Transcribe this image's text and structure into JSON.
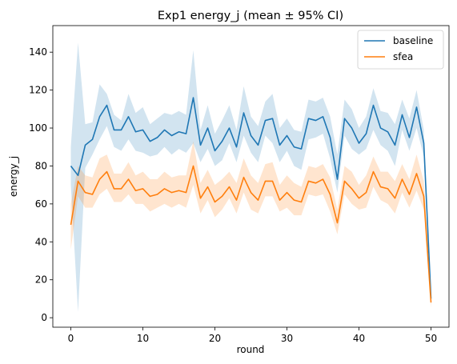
{
  "chart_data": {
    "type": "line",
    "title": "Exp1 energy_j (mean ± 95% CI)",
    "xlabel": "round",
    "ylabel": "energy_j",
    "xlim": [
      -2.5,
      52.5
    ],
    "ylim": [
      -5,
      154
    ],
    "xticks": [
      0,
      10,
      20,
      30,
      40,
      50
    ],
    "yticks": [
      0,
      20,
      40,
      60,
      80,
      100,
      120,
      140
    ],
    "grid": false,
    "legend_position": "top-right",
    "x": [
      0,
      1,
      2,
      3,
      4,
      5,
      6,
      7,
      8,
      9,
      10,
      11,
      12,
      13,
      14,
      15,
      16,
      17,
      18,
      19,
      20,
      21,
      22,
      23,
      24,
      25,
      26,
      27,
      28,
      29,
      30,
      31,
      32,
      33,
      34,
      35,
      36,
      37,
      38,
      39,
      40,
      41,
      42,
      43,
      44,
      45,
      46,
      47,
      48,
      49,
      50
    ],
    "series": [
      {
        "name": "baseline",
        "color": "#1f77b4",
        "values": [
          80,
          75,
          91,
          94,
          106,
          112,
          99,
          99,
          106,
          98,
          99,
          93,
          95,
          99,
          96,
          98,
          97,
          116,
          91,
          100,
          88,
          93,
          100,
          90,
          108,
          96,
          91,
          104,
          105,
          91,
          96,
          90,
          89,
          105,
          104,
          106,
          95,
          73,
          105,
          100,
          92,
          97,
          112,
          100,
          98,
          91,
          107,
          95,
          111,
          92,
          10
        ],
        "ci_lower": [
          70,
          3,
          79,
          86,
          94,
          101,
          90,
          88,
          94,
          88,
          87,
          85,
          86,
          90,
          86,
          89,
          87,
          92,
          82,
          89,
          80,
          83,
          92,
          82,
          96,
          87,
          82,
          96,
          92,
          82,
          88,
          80,
          78,
          94,
          95,
          97,
          84,
          66,
          96,
          89,
          86,
          89,
          99,
          91,
          88,
          80,
          99,
          88,
          100,
          85,
          7
        ],
        "ci_upper": [
          90,
          145,
          102,
          103,
          123,
          118,
          107,
          104,
          118,
          108,
          111,
          102,
          105,
          108,
          107,
          109,
          107,
          141,
          99,
          112,
          97,
          104,
          112,
          99,
          122,
          106,
          101,
          114,
          118,
          100,
          105,
          99,
          98,
          115,
          114,
          116,
          106,
          86,
          115,
          110,
          100,
          106,
          121,
          109,
          108,
          102,
          115,
          105,
          120,
          99,
          14
        ]
      },
      {
        "name": "sfea",
        "color": "#ff7f0e",
        "values": [
          49,
          72,
          66,
          65,
          73,
          77,
          68,
          68,
          73,
          67,
          68,
          64,
          65,
          68,
          66,
          67,
          66,
          80,
          63,
          69,
          61,
          64,
          69,
          62,
          74,
          66,
          62,
          72,
          72,
          62,
          66,
          62,
          61,
          72,
          71,
          73,
          65,
          50,
          72,
          68,
          63,
          66,
          77,
          69,
          68,
          63,
          73,
          65,
          76,
          64,
          8
        ],
        "ci_lower": [
          36,
          64,
          58,
          58,
          65,
          68,
          61,
          61,
          65,
          60,
          60,
          56,
          58,
          60,
          58,
          60,
          58,
          70,
          55,
          62,
          53,
          57,
          63,
          55,
          66,
          57,
          55,
          64,
          64,
          56,
          58,
          54,
          54,
          65,
          64,
          65,
          56,
          44,
          65,
          60,
          57,
          58,
          69,
          62,
          60,
          55,
          66,
          58,
          67,
          57,
          5
        ],
        "ci_upper": [
          60,
          80,
          75,
          74,
          84,
          86,
          76,
          76,
          82,
          75,
          77,
          73,
          73,
          77,
          74,
          75,
          75,
          93,
          71,
          78,
          70,
          73,
          77,
          71,
          84,
          75,
          71,
          81,
          82,
          70,
          75,
          71,
          69,
          80,
          79,
          81,
          74,
          57,
          80,
          77,
          70,
          75,
          85,
          77,
          77,
          72,
          81,
          73,
          86,
          72,
          12
        ]
      }
    ]
  }
}
